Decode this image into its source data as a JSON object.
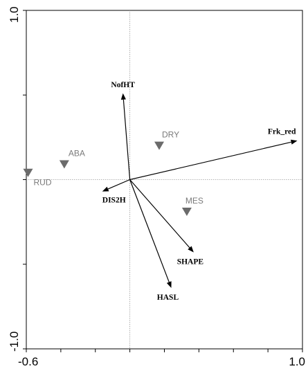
{
  "chart_data": {
    "type": "scatter",
    "title": "",
    "xlabel": "",
    "ylabel": "",
    "xlim": [
      -0.6,
      1.0
    ],
    "ylim": [
      -1.0,
      1.0
    ],
    "x_tick_labels": [
      "-0.6",
      "1.0"
    ],
    "y_tick_labels": [
      "1.0",
      "-1.0"
    ],
    "x_minor_ticks": [
      -0.6,
      -0.4,
      -0.2,
      0.0,
      0.2,
      0.4,
      0.6,
      0.8,
      1.0
    ],
    "y_minor_ticks": [
      -1.0,
      -0.5,
      0.0,
      0.5,
      1.0
    ],
    "zero_lines": true,
    "grid": false,
    "vectors": [
      {
        "name": "NofHT",
        "x": -0.04,
        "y": 0.51
      },
      {
        "name": "Frk_red",
        "x": 0.97,
        "y": 0.23
      },
      {
        "name": "DIS2H",
        "x": -0.16,
        "y": -0.07
      },
      {
        "name": "SHAPE",
        "x": 0.37,
        "y": -0.43
      },
      {
        "name": "HASL",
        "x": 0.24,
        "y": -0.64
      }
    ],
    "points": [
      {
        "name": "RUD",
        "x": -0.59,
        "y": 0.04,
        "marker": "triangle-down"
      },
      {
        "name": "ABA",
        "x": -0.38,
        "y": 0.09,
        "marker": "triangle-down"
      },
      {
        "name": "DRY",
        "x": 0.17,
        "y": 0.2,
        "marker": "triangle-down"
      },
      {
        "name": "MES",
        "x": 0.33,
        "y": -0.19,
        "marker": "triangle-down"
      }
    ],
    "colors": {
      "vector": "#000000",
      "point": "#6b6b6b",
      "point_label": "#7a7a7a",
      "zero_line": "#9a9a9a"
    }
  }
}
